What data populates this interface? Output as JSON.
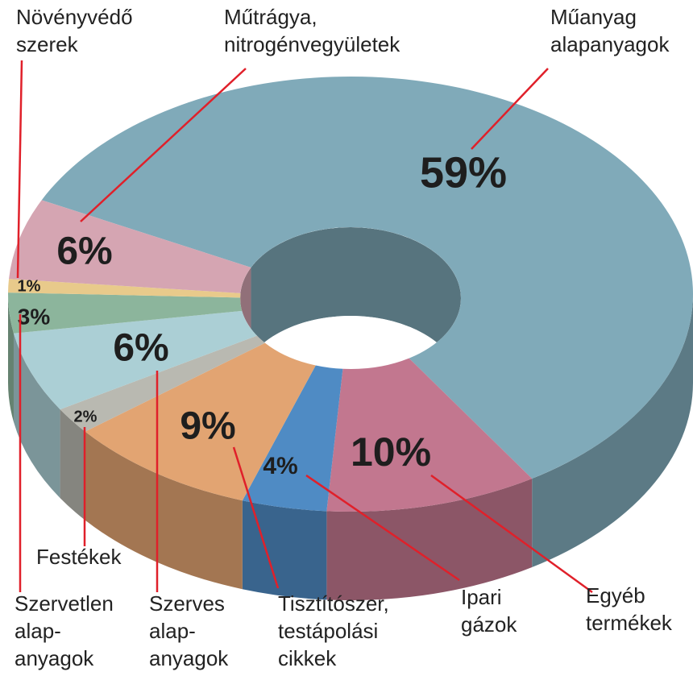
{
  "chart_data": {
    "type": "donut3d",
    "categories": [
      [
        "Műanyag",
        "alapanyagok"
      ],
      [
        "Egyéb",
        "termékek"
      ],
      [
        "Ipari",
        "gázok"
      ],
      [
        "Tisztítószer,",
        "testápolási",
        "cikkek"
      ],
      [
        "Festékek"
      ],
      [
        "Szerves",
        "alap-",
        "anyagok"
      ],
      [
        "Szervetlen",
        "alap-",
        "anyagok"
      ],
      [
        "Növényvédő",
        "szerek"
      ],
      [
        "Műtrágya,",
        "nitrogénvegyületek"
      ]
    ],
    "values": [
      59,
      10,
      4,
      9,
      2,
      6,
      3,
      1,
      6
    ],
    "value_labels": [
      "59%",
      "10%",
      "4%",
      "9%",
      "2%",
      "6%",
      "3%",
      "1%",
      "6%"
    ],
    "colors": [
      "#80aab9",
      "#c2778f",
      "#4f8bc4",
      "#e2a472",
      "#b9b9b1",
      "#abcfd5",
      "#8cb59c",
      "#e8ca8b",
      "#d5a5b2"
    ]
  }
}
